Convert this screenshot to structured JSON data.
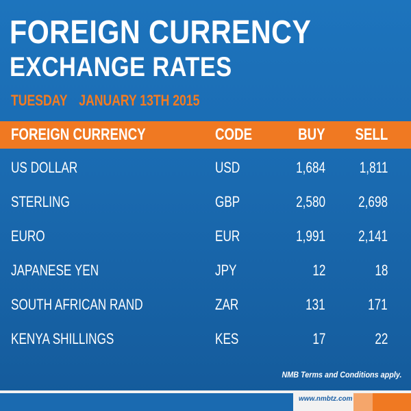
{
  "title": {
    "line1": "FOREIGN CURRENCY",
    "line2": "EXCHANGE RATES"
  },
  "date": {
    "day": "TUESDAY",
    "full": "JANUARY 13TH 2015"
  },
  "table": {
    "headers": {
      "currency": "FOREIGN CURRENCY",
      "code": "CODE",
      "buy": "BUY",
      "sell": "SELL"
    },
    "rows": [
      {
        "currency": "US DOLLAR",
        "code": "USD",
        "buy": "1,684",
        "sell": "1,811"
      },
      {
        "currency": "STERLING",
        "code": "GBP",
        "buy": "2,580",
        "sell": "2,698"
      },
      {
        "currency": "EURO",
        "code": "EUR",
        "buy": "1,991",
        "sell": "2,141"
      },
      {
        "currency": "JAPANESE YEN",
        "code": "JPY",
        "buy": "12",
        "sell": "18"
      },
      {
        "currency": "SOUTH AFRICAN RAND",
        "code": "ZAR",
        "buy": "131",
        "sell": "171"
      },
      {
        "currency": "KENYA SHILLINGS",
        "code": "KES",
        "buy": "17",
        "sell": "22"
      }
    ]
  },
  "footnote": "NMB Terms and Conditions apply.",
  "website": "www.nmbtz.com",
  "colors": {
    "background": "#1a6ab0",
    "accent": "#f07922",
    "text": "#ffffff"
  }
}
